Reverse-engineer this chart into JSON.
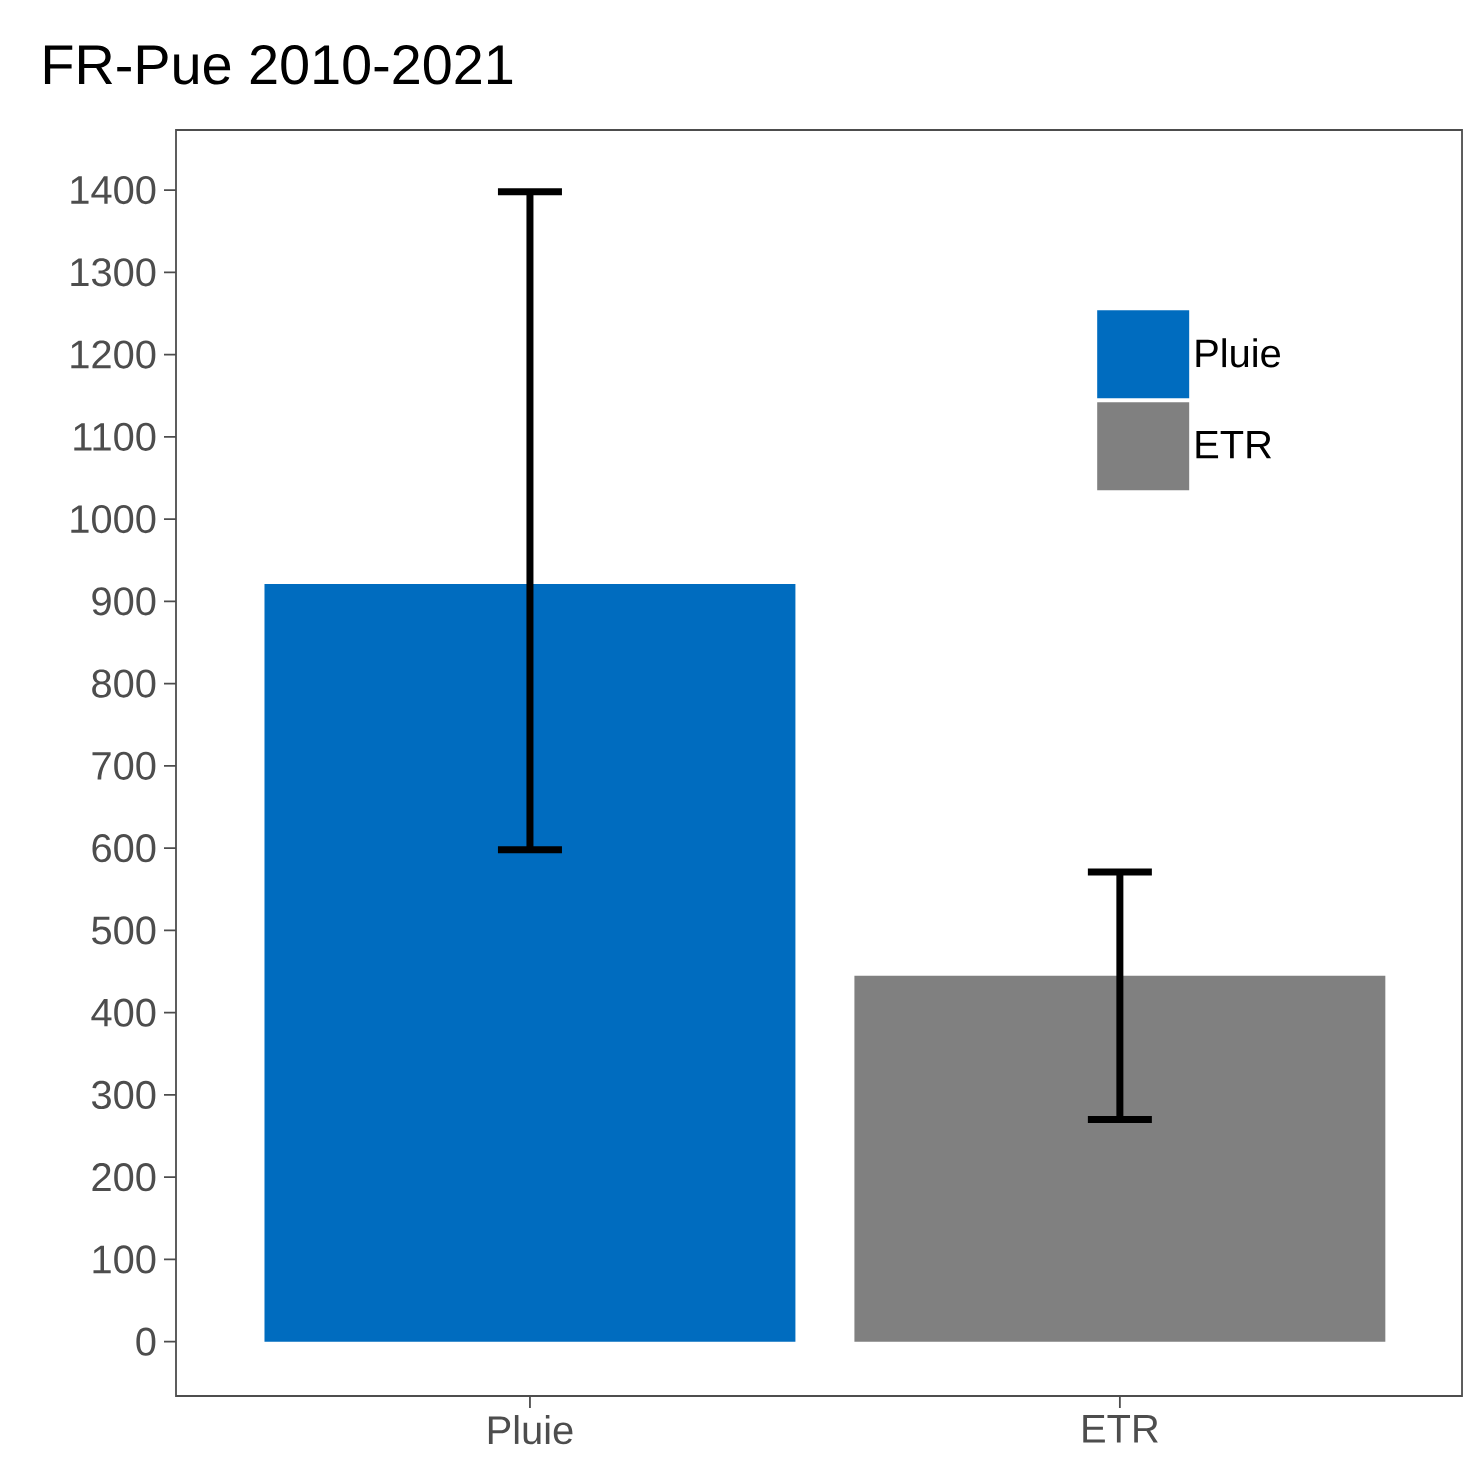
{
  "chart_data": {
    "type": "bar",
    "title": "FR-Pue 2010-2021",
    "categories": [
      "Pluie",
      "ETR"
    ],
    "series": [
      {
        "name": "Pluie",
        "color": "#006cbf",
        "values": [
          921,
          null
        ],
        "errors": [
          [
            598,
            1398
          ],
          null
        ]
      },
      {
        "name": "ETR",
        "color": "#808080",
        "values": [
          null,
          445
        ],
        "errors": [
          null,
          [
            270,
            571
          ]
        ]
      }
    ],
    "ylim": [
      -66,
      1473
    ],
    "yticks": [
      0,
      100,
      200,
      300,
      400,
      500,
      600,
      700,
      800,
      900,
      1000,
      1100,
      1200,
      1300,
      1400
    ],
    "grid": false,
    "legend": "top right"
  }
}
